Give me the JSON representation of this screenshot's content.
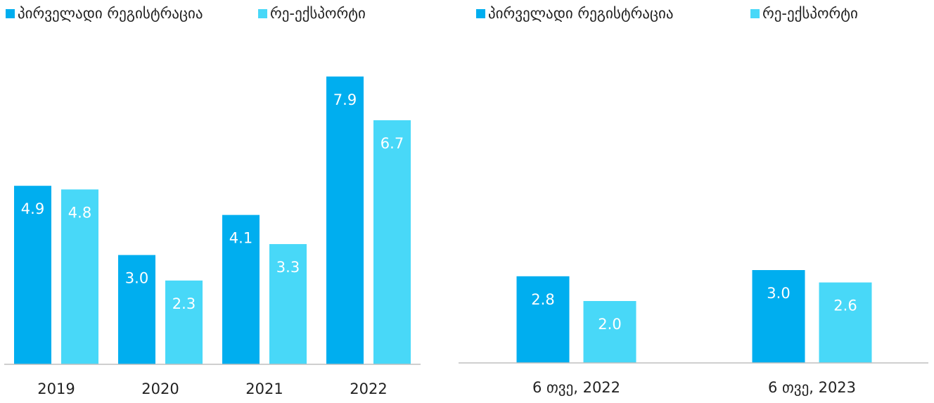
{
  "chart_data": [
    {
      "type": "bar",
      "categories": [
        "2019",
        "2020",
        "2021",
        "2022"
      ],
      "series": [
        {
          "name": "პირველადი რეგისტრაცია",
          "color": "#00aeef",
          "values": [
            4.9,
            3.0,
            4.1,
            7.9
          ],
          "value_labels": [
            "4.9",
            "3.0",
            "4.1",
            "7.9"
          ]
        },
        {
          "name": "რე-ექსპორტი",
          "color": "#48d8f8",
          "values": [
            4.8,
            2.3,
            3.3,
            6.7
          ],
          "value_labels": [
            "4.8",
            "2.3",
            "3.3",
            "6.7"
          ]
        }
      ]
    },
    {
      "type": "bar",
      "categories": [
        "6 თვე, 2022",
        "6 თვე, 2023"
      ],
      "series": [
        {
          "name": "პირველადი რეგისტრაცია",
          "color": "#00aeef",
          "values": [
            2.8,
            3.0
          ],
          "value_labels": [
            "2.8",
            "3.0"
          ]
        },
        {
          "name": "რე-ექსპორტი",
          "color": "#48d8f8",
          "values": [
            2.0,
            2.6
          ],
          "value_labels": [
            "2.0",
            "2.6"
          ]
        }
      ]
    }
  ]
}
